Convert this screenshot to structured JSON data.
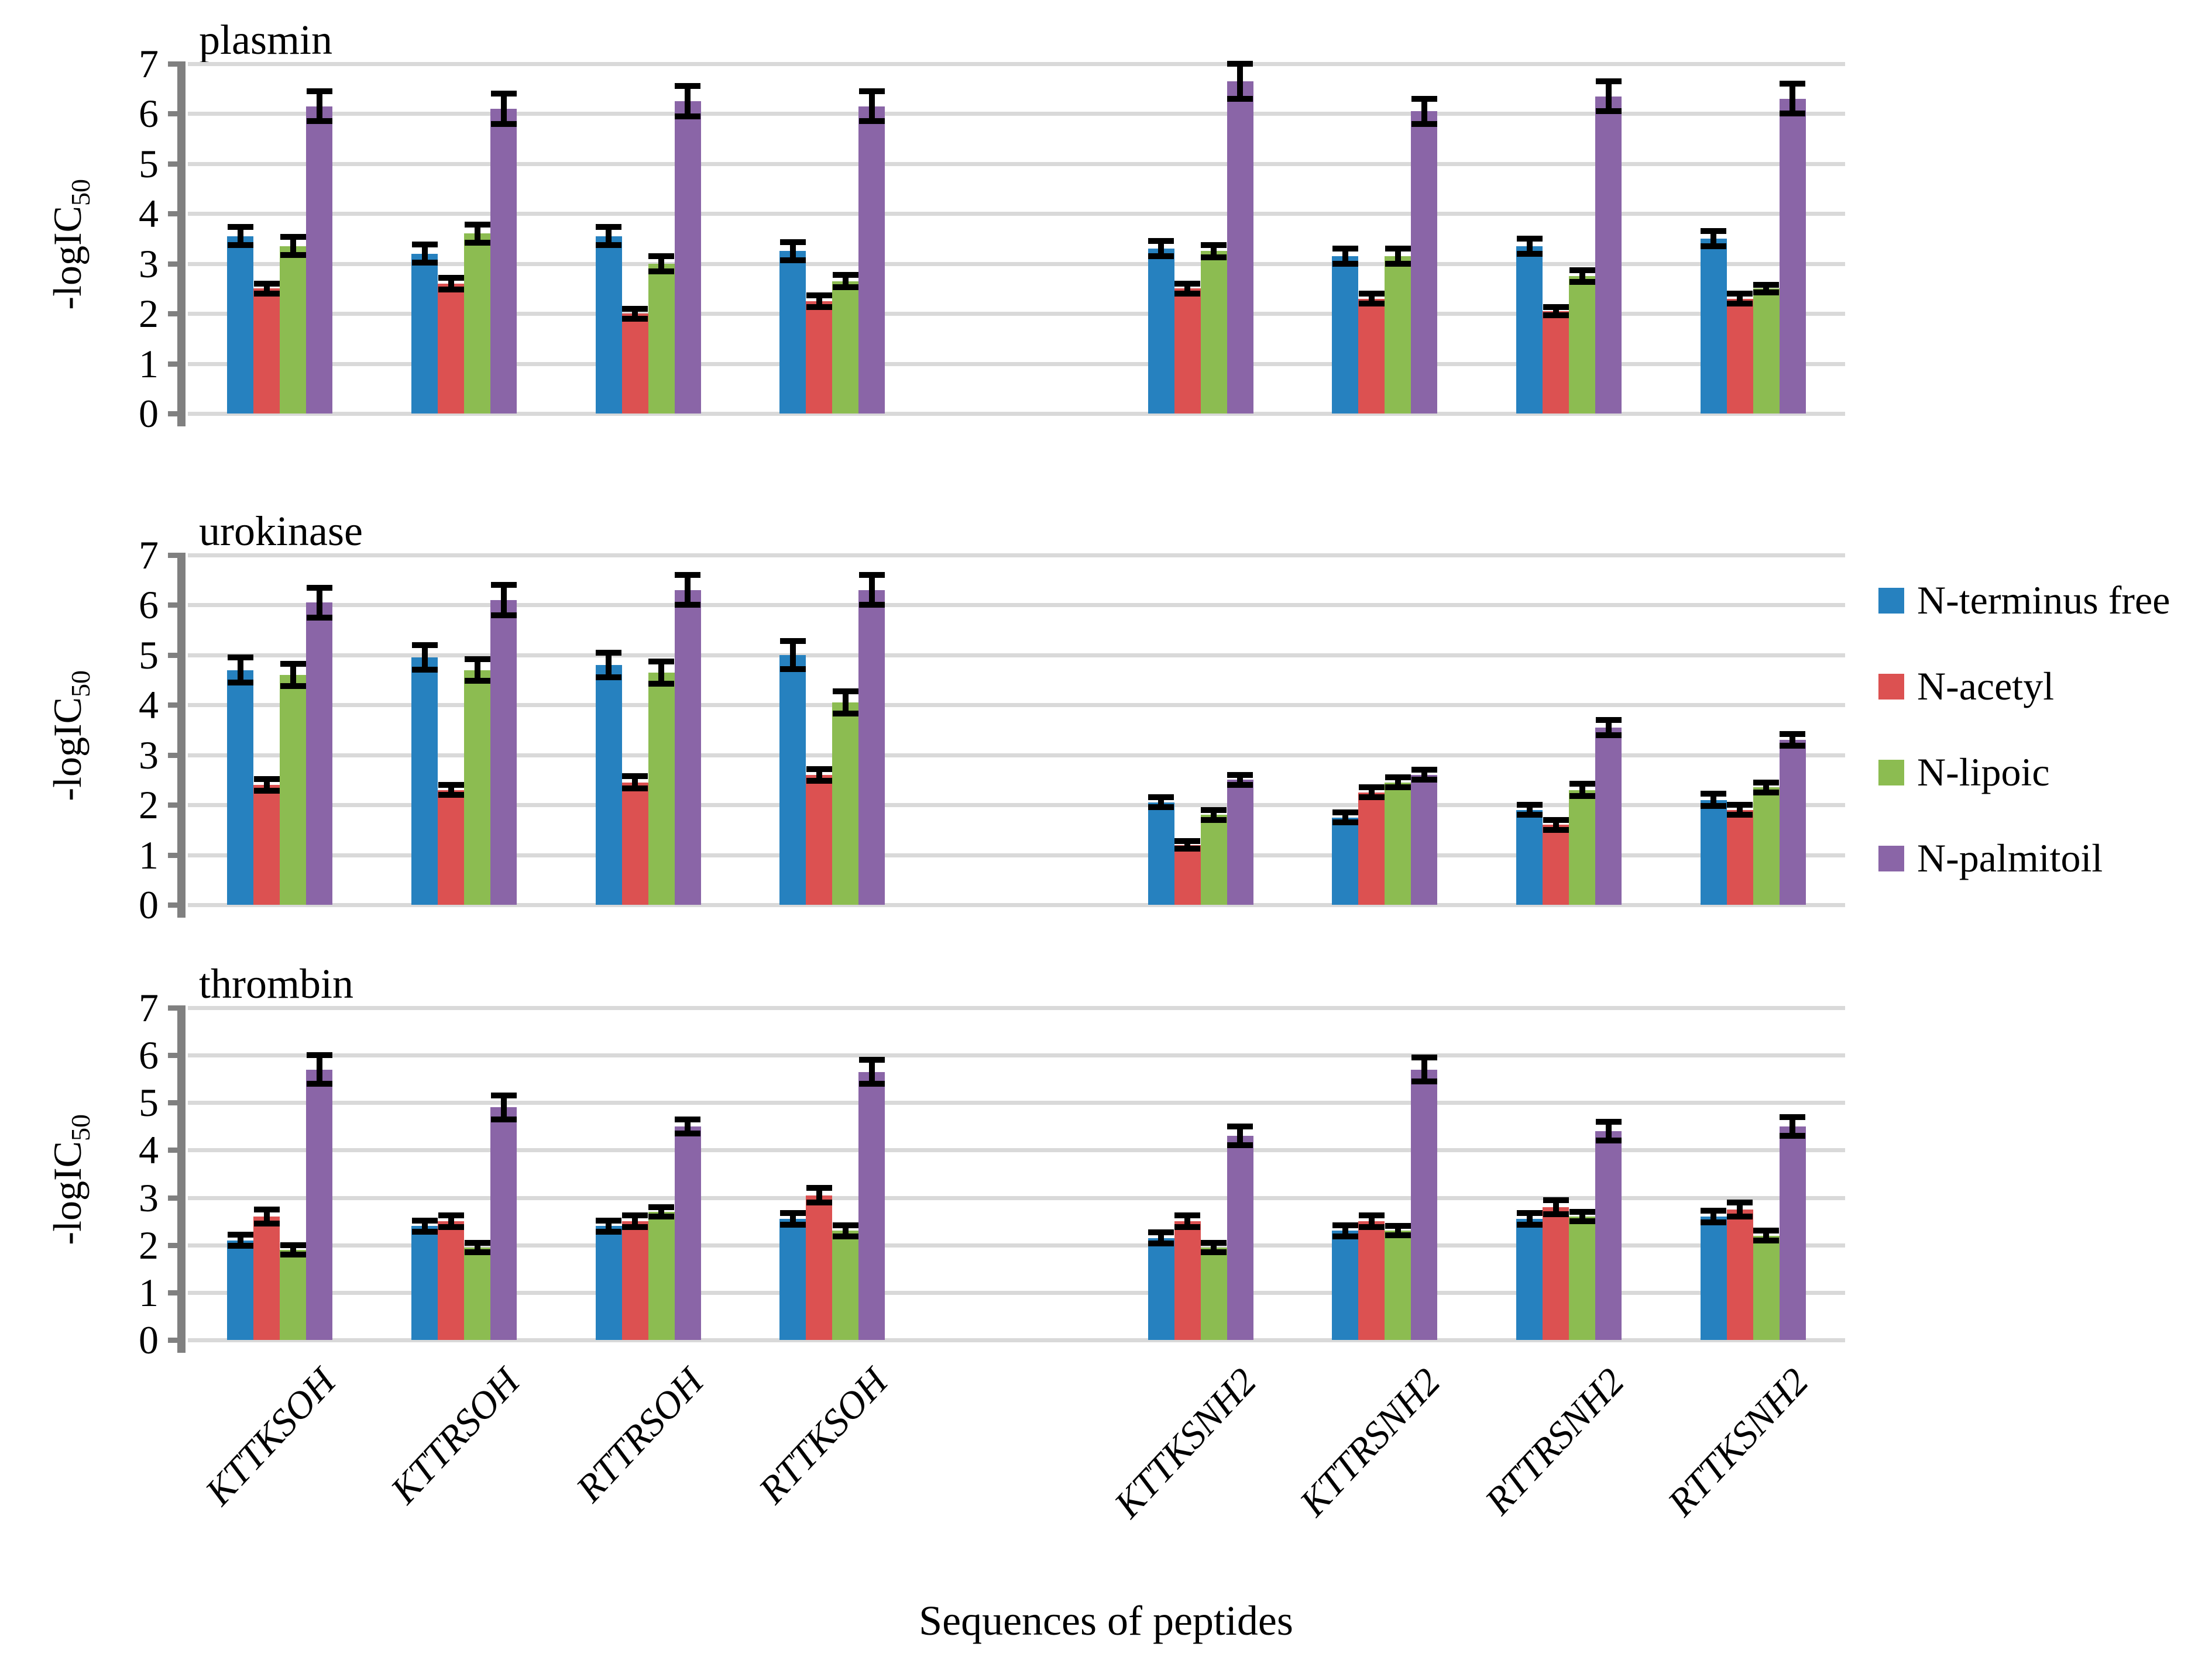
{
  "figure": {
    "xlabel": "Sequences of peptides",
    "ylabel_main": "-logIC",
    "ylabel_sub": "50"
  },
  "legend": [
    {
      "label": "N-terminus free",
      "color": "#2681BF"
    },
    {
      "label": "N-acetyl",
      "color": "#DC5151"
    },
    {
      "label": "N-lipoic",
      "color": "#8CBC51"
    },
    {
      "label": "N-palmitoil",
      "color": "#8A65A7"
    }
  ],
  "colors": {
    "gridline": "#D9D9D9",
    "axis": "#808080",
    "error_bar": "#000000"
  },
  "chart_data": [
    {
      "type": "bar",
      "title": "plasmin",
      "ylabel": "-logIC50",
      "ylim": [
        0,
        7
      ],
      "y_ticks": [
        0,
        1,
        2,
        3,
        4,
        5,
        6,
        7
      ],
      "grid": true,
      "legend_position": "right",
      "gap_after_category": 4,
      "categories": [
        "KTTKSOH",
        "KTTRSOH",
        "RTTRSOH",
        "RTTKSOH",
        "KTTKSNH2",
        "KTTRSNH2",
        "RTTRSNH2",
        "RTTKSNH2"
      ],
      "series": [
        {
          "name": "N-terminus free",
          "values": [
            3.55,
            3.2,
            3.55,
            3.25,
            3.3,
            3.15,
            3.35,
            3.5
          ],
          "errors": [
            0.18,
            0.18,
            0.18,
            0.18,
            0.15,
            0.15,
            0.15,
            0.15
          ]
        },
        {
          "name": "N-acetyl",
          "values": [
            2.5,
            2.6,
            2.0,
            2.25,
            2.5,
            2.3,
            2.05,
            2.3
          ],
          "errors": [
            0.1,
            0.12,
            0.1,
            0.12,
            0.1,
            0.1,
            0.08,
            0.1
          ]
        },
        {
          "name": "N-lipoic",
          "values": [
            3.35,
            3.6,
            3.0,
            2.65,
            3.25,
            3.15,
            2.75,
            2.5
          ],
          "errors": [
            0.18,
            0.18,
            0.15,
            0.12,
            0.12,
            0.15,
            0.12,
            0.08
          ]
        },
        {
          "name": "N-palmitoil",
          "values": [
            6.15,
            6.1,
            6.25,
            6.15,
            6.65,
            6.05,
            6.35,
            6.3
          ],
          "errors": [
            0.3,
            0.3,
            0.3,
            0.3,
            0.35,
            0.25,
            0.3,
            0.3
          ]
        }
      ]
    },
    {
      "type": "bar",
      "title": "urokinase",
      "ylabel": "-logIC50",
      "ylim": [
        0,
        7
      ],
      "y_ticks": [
        0,
        1,
        2,
        3,
        4,
        5,
        6,
        7
      ],
      "grid": true,
      "legend_position": "right",
      "gap_after_category": 4,
      "categories": [
        "KTTKSOH",
        "KTTRSOH",
        "RTTRSOH",
        "RTTKSOH",
        "KTTKSNH2",
        "KTTRSNH2",
        "RTTRSNH2",
        "RTTKSNH2"
      ],
      "series": [
        {
          "name": "N-terminus free",
          "values": [
            4.7,
            4.95,
            4.8,
            5.0,
            2.05,
            1.75,
            1.9,
            2.1
          ],
          "errors": [
            0.25,
            0.25,
            0.25,
            0.28,
            0.1,
            0.1,
            0.1,
            0.12
          ]
        },
        {
          "name": "N-acetyl",
          "values": [
            2.4,
            2.3,
            2.45,
            2.6,
            1.2,
            2.25,
            1.6,
            1.9
          ],
          "errors": [
            0.12,
            0.1,
            0.12,
            0.12,
            0.08,
            0.1,
            0.1,
            0.1
          ]
        },
        {
          "name": "N-lipoic",
          "values": [
            4.6,
            4.7,
            4.65,
            4.05,
            1.8,
            2.45,
            2.3,
            2.35
          ],
          "errors": [
            0.22,
            0.22,
            0.22,
            0.22,
            0.1,
            0.1,
            0.12,
            0.1
          ]
        },
        {
          "name": "N-palmitoil",
          "values": [
            6.05,
            6.1,
            6.3,
            6.3,
            2.5,
            2.6,
            3.55,
            3.3
          ],
          "errors": [
            0.3,
            0.3,
            0.3,
            0.3,
            0.1,
            0.1,
            0.15,
            0.12
          ]
        }
      ]
    },
    {
      "type": "bar",
      "title": "thrombin",
      "ylabel": "-logIC50",
      "ylim": [
        0,
        7
      ],
      "y_ticks": [
        0,
        1,
        2,
        3,
        4,
        5,
        6,
        7
      ],
      "grid": true,
      "legend_position": "right",
      "gap_after_category": 4,
      "categories": [
        "KTTKSOH",
        "KTTRSOH",
        "RTTRSOH",
        "RTTKSOH",
        "KTTKSNH2",
        "KTTRSNH2",
        "RTTRSNH2",
        "RTTKSNH2"
      ],
      "series": [
        {
          "name": "N-terminus free",
          "values": [
            2.1,
            2.4,
            2.4,
            2.55,
            2.15,
            2.3,
            2.55,
            2.6
          ],
          "errors": [
            0.12,
            0.12,
            0.12,
            0.12,
            0.12,
            0.12,
            0.12,
            0.12
          ]
        },
        {
          "name": "N-acetyl",
          "values": [
            2.6,
            2.5,
            2.5,
            3.05,
            2.5,
            2.5,
            2.8,
            2.75
          ],
          "errors": [
            0.15,
            0.12,
            0.12,
            0.15,
            0.12,
            0.12,
            0.15,
            0.15
          ]
        },
        {
          "name": "N-lipoic",
          "values": [
            1.9,
            1.95,
            2.7,
            2.3,
            1.95,
            2.3,
            2.6,
            2.2
          ],
          "errors": [
            0.1,
            0.1,
            0.1,
            0.12,
            0.1,
            0.1,
            0.1,
            0.1
          ]
        },
        {
          "name": "N-palmitoil",
          "values": [
            5.7,
            4.9,
            4.5,
            5.65,
            4.3,
            5.7,
            4.4,
            4.5
          ],
          "errors": [
            0.3,
            0.25,
            0.15,
            0.25,
            0.2,
            0.25,
            0.2,
            0.2
          ]
        }
      ]
    }
  ]
}
